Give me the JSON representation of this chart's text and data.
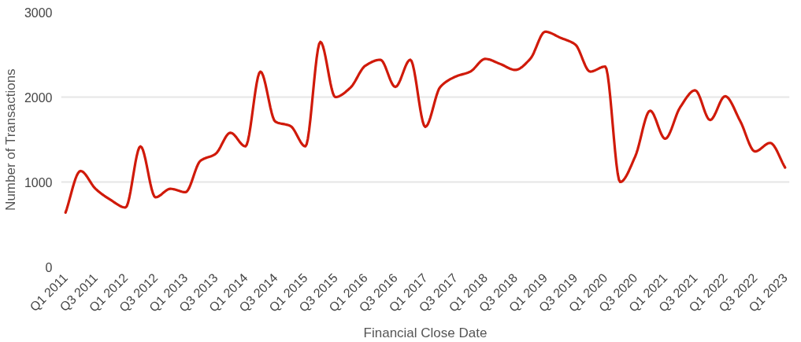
{
  "chart_data": {
    "type": "line",
    "xlabel": "Financial Close Date",
    "ylabel": "Number of Transactions",
    "categories": [
      "Q1 2011",
      null,
      "Q3 2011",
      null,
      "Q1 2012",
      null,
      "Q3 2012",
      null,
      "Q1 2013",
      null,
      "Q3 2013",
      null,
      "Q1 2014",
      null,
      "Q3 2014",
      null,
      "Q1 2015",
      null,
      "Q3 2015",
      null,
      "Q1 2016",
      null,
      "Q3 2016",
      null,
      "Q1 2017",
      null,
      "Q3 2017",
      null,
      "Q1 2018",
      null,
      "Q3 2018",
      null,
      "Q1 2019",
      null,
      "Q3 2019",
      null,
      "Q1 2020",
      null,
      "Q3 2020",
      null,
      "Q1 2021",
      null,
      "Q3 2021",
      null,
      "Q1 2022",
      null,
      "Q3 2022",
      null,
      "Q1 2023"
    ],
    "series": [
      {
        "color": "#d01a0a",
        "values": [
          640,
          1130,
          920,
          790,
          700,
          1420,
          820,
          920,
          880,
          1250,
          1330,
          1580,
          1420,
          2300,
          1710,
          1660,
          1420,
          2650,
          2000,
          2110,
          2370,
          2440,
          2120,
          2440,
          1650,
          2120,
          2240,
          2300,
          2450,
          2390,
          2320,
          2450,
          2770,
          2700,
          2620,
          2300,
          2360,
          1000,
          1300,
          1840,
          1510,
          1880,
          2080,
          1730,
          2010,
          1720,
          1360,
          1460,
          1170
        ]
      }
    ],
    "ylim": [
      0,
      3000
    ],
    "yticks": [
      0,
      1000,
      2000,
      3000
    ],
    "grid": "y",
    "marker": "none",
    "line_style": "solid"
  }
}
